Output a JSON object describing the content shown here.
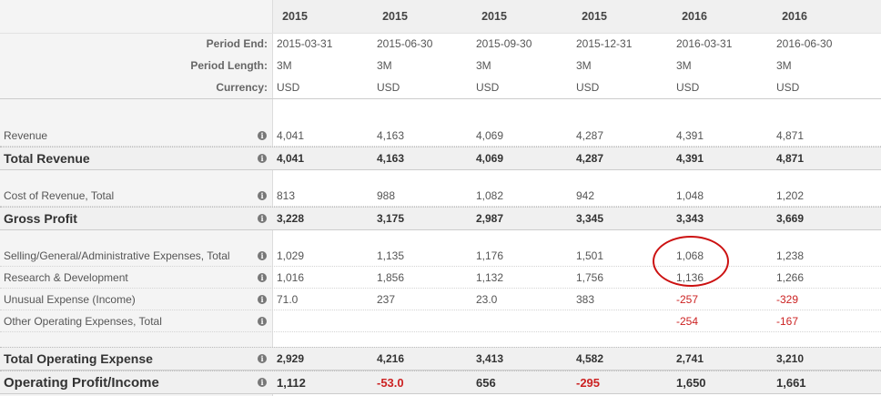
{
  "years": [
    "2015",
    "2015",
    "2015",
    "2015",
    "2016",
    "2016"
  ],
  "meta": [
    {
      "label": "Period End:",
      "values": [
        "2015-03-31",
        "2015-06-30",
        "2015-09-30",
        "2015-12-31",
        "2016-03-31",
        "2016-06-30"
      ]
    },
    {
      "label": "Period Length:",
      "values": [
        "3M",
        "3M",
        "3M",
        "3M",
        "3M",
        "3M"
      ]
    },
    {
      "label": "Currency:",
      "values": [
        "USD",
        "USD",
        "USD",
        "USD",
        "USD",
        "USD"
      ]
    }
  ],
  "info_icon_glyph": "i",
  "rows": [
    {
      "key": "revenue",
      "label": "Revenue",
      "values": [
        "4,041",
        "4,163",
        "4,069",
        "4,287",
        "4,391",
        "4,871"
      ]
    },
    {
      "key": "total_revenue",
      "label": "Total Revenue",
      "values": [
        "4,041",
        "4,163",
        "4,069",
        "4,287",
        "4,391",
        "4,871"
      ]
    },
    {
      "key": "cost_of_revenue",
      "label": "Cost of Revenue, Total",
      "values": [
        "813",
        "988",
        "1,082",
        "942",
        "1,048",
        "1,202"
      ]
    },
    {
      "key": "gross_profit",
      "label": "Gross Profit",
      "values": [
        "3,228",
        "3,175",
        "2,987",
        "3,345",
        "3,343",
        "3,669"
      ]
    },
    {
      "key": "sga",
      "label": "Selling/General/Administrative Expenses, Total",
      "values": [
        "1,029",
        "1,135",
        "1,176",
        "1,501",
        "1,068",
        "1,238"
      ]
    },
    {
      "key": "rnd",
      "label": "Research & Development",
      "values": [
        "1,016",
        "1,856",
        "1,132",
        "1,756",
        "1,136",
        "1,266"
      ]
    },
    {
      "key": "unusual",
      "label": "Unusual Expense (Income)",
      "values": [
        "71.0",
        "237",
        "23.0",
        "383",
        "-257",
        "-329"
      ]
    },
    {
      "key": "other_opex",
      "label": "Other Operating Expenses, Total",
      "values": [
        "",
        "",
        "",
        "",
        "-254",
        "-167"
      ]
    },
    {
      "key": "total_opex",
      "label": "Total Operating Expense",
      "values": [
        "2,929",
        "4,216",
        "3,413",
        "4,582",
        "2,741",
        "3,210"
      ]
    },
    {
      "key": "operating_profit",
      "label": "Operating Profit/Income",
      "values": [
        "1,112",
        "-53.0",
        "656",
        "-295",
        "1,650",
        "1,661"
      ]
    }
  ],
  "colors": {
    "negative": "#cc2222",
    "highlight_annotation": "#cc1111"
  }
}
